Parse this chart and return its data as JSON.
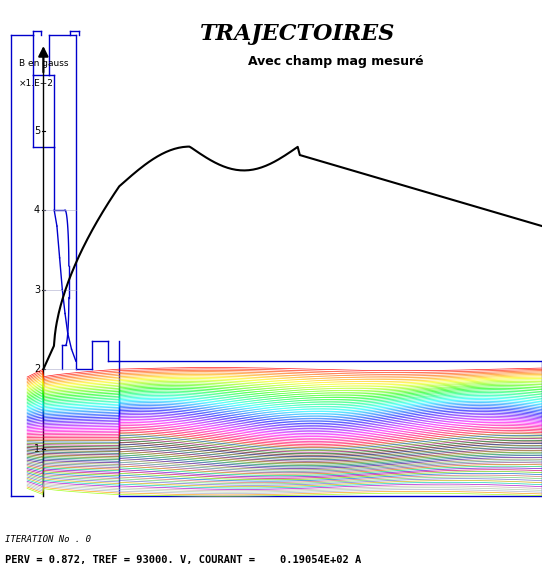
{
  "title": "TRAJECTOIRES",
  "subtitle": "Avec champ mag mesuré",
  "b_label": "B en gauss",
  "b_scale": "×1.E+2",
  "yticks": [
    1,
    2,
    3,
    4,
    5
  ],
  "footer_line1": "ITERATION No . 0",
  "footer_line2": "PERV = 0.872, TREF = 93000. V, COURANT =    0.19054E+02 A",
  "bg_color": "#ffffff",
  "gun_color": "#0000cc",
  "mag_field_color": "#000000",
  "n_trajectories": 80,
  "traj_seed": 12
}
